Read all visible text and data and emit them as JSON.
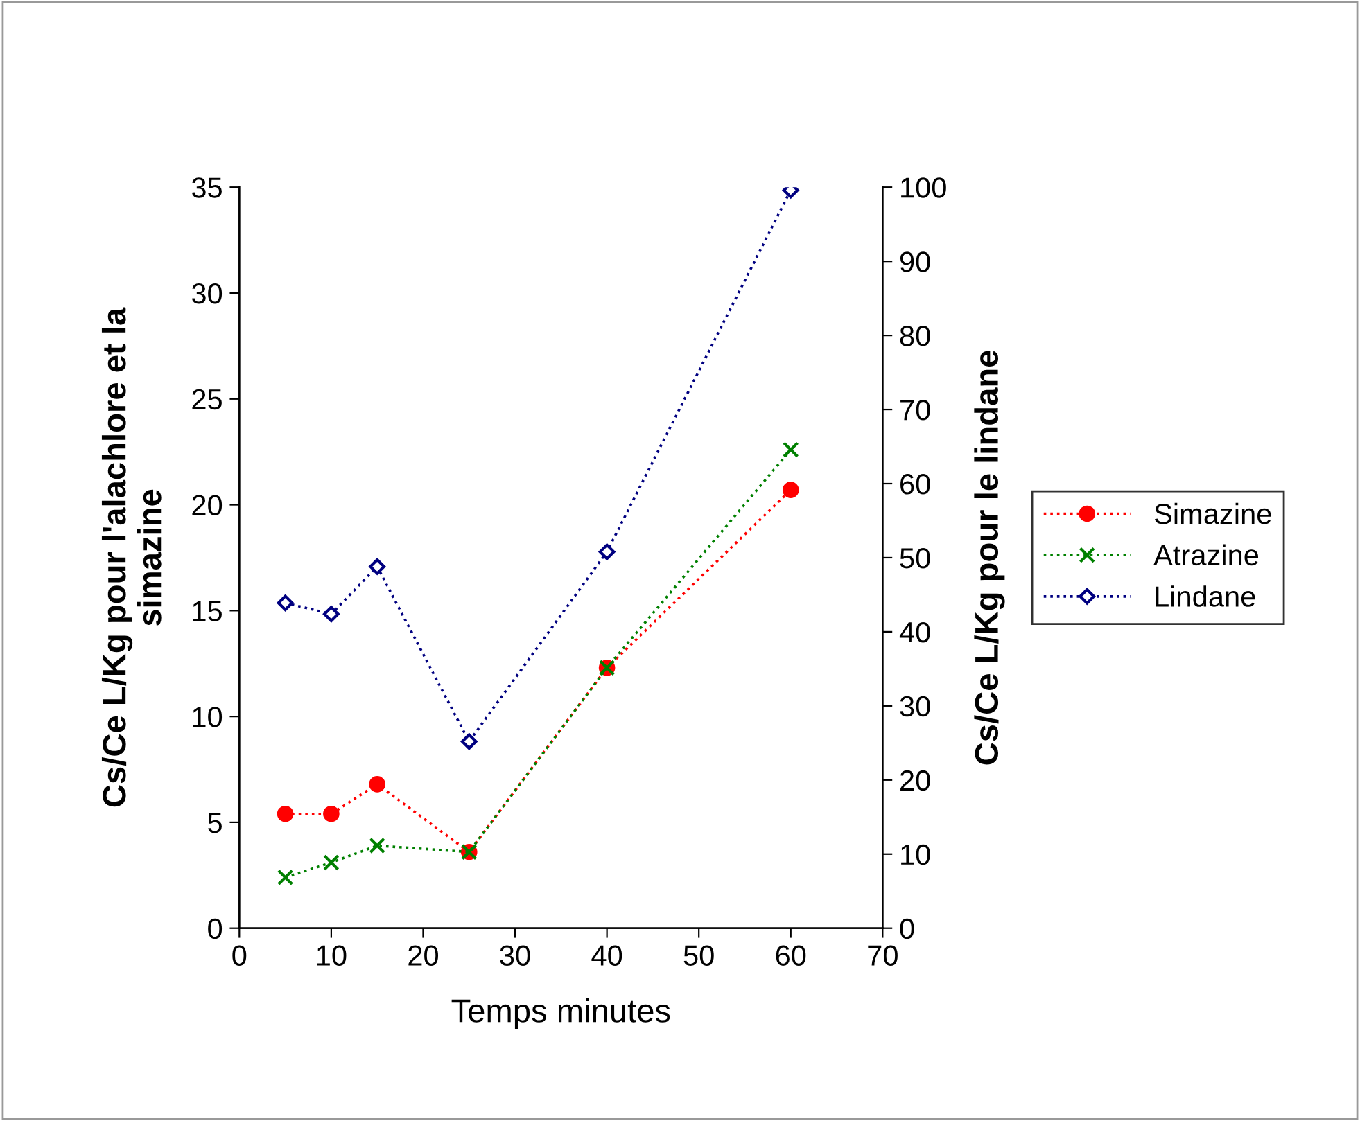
{
  "chart_data": {
    "type": "line",
    "xlabel": "Temps minutes",
    "ylabel": "Cs/Ce L/Kg pour l'alachlore et la\nsimazine",
    "y2label": "Cs/Ce L/Kg pour le lindane",
    "x": [
      5,
      10,
      15,
      25,
      40,
      60
    ],
    "series": [
      {
        "name": "Simazine",
        "color": "#ff0000",
        "marker": "circle",
        "line_style": "dotted",
        "values": [
          5.4,
          5.4,
          6.8,
          3.6,
          12.3,
          20.7
        ]
      },
      {
        "name": "Atrazine",
        "color": "#008000",
        "marker": "cross",
        "line_style": "dotted",
        "values": [
          2.4,
          3.1,
          3.9,
          3.6,
          12.3,
          22.6
        ]
      },
      {
        "name": "Lindane",
        "color": "#000080",
        "marker": "diamond",
        "line_style": "dotted",
        "axis": "y2",
        "values": [
          43.9,
          42.4,
          48.8,
          25.2,
          50.8,
          99.6
        ]
      }
    ],
    "xlim": [
      0,
      70
    ],
    "xticks": [
      0,
      10,
      20,
      30,
      40,
      50,
      60,
      70
    ],
    "ylim": [
      0,
      35
    ],
    "yticks": [
      0,
      5,
      10,
      15,
      20,
      25,
      30,
      35
    ],
    "y2lim": [
      0,
      100
    ],
    "y2ticks": [
      0,
      10,
      20,
      30,
      40,
      50,
      60,
      70,
      80,
      90,
      100
    ],
    "grid": false,
    "legend": "right"
  }
}
